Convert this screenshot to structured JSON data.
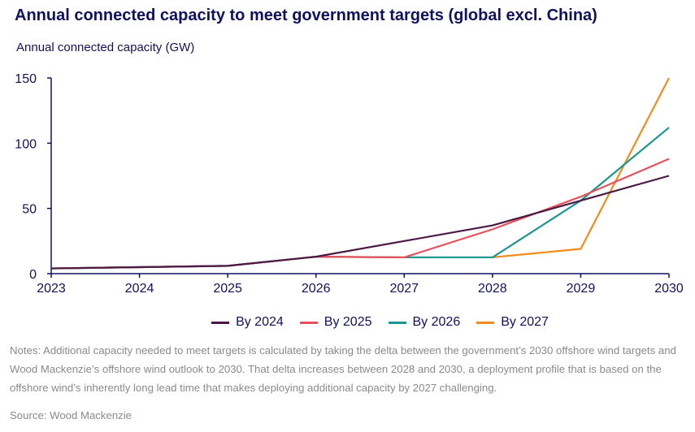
{
  "chart_data": {
    "type": "line",
    "title": "Annual connected capacity to meet government targets (global excl. China)",
    "ylabel": "Annual connected capacity (GW)",
    "xlabel": "",
    "x": [
      2023,
      2024,
      2025,
      2026,
      2027,
      2028,
      2029,
      2030
    ],
    "ylim": [
      0,
      150
    ],
    "yticks": [
      0,
      50,
      100,
      150
    ],
    "grid": false,
    "legend_position": "bottom",
    "series": [
      {
        "name": "By 2024",
        "color": "#4a1a45",
        "values": [
          4,
          5,
          6,
          13,
          25,
          37,
          56,
          75
        ]
      },
      {
        "name": "By 2025",
        "color": "#e8505b",
        "values": [
          4,
          5,
          6,
          13,
          12.5,
          34,
          59,
          88
        ]
      },
      {
        "name": "By 2026",
        "color": "#1b9691",
        "values": [
          4,
          5,
          6,
          13,
          12.5,
          12.5,
          56,
          112
        ]
      },
      {
        "name": "By 2027",
        "color": "#f28c1c",
        "values": [
          4,
          5,
          6,
          13,
          12.5,
          12.5,
          19,
          150
        ]
      }
    ]
  },
  "notes": "Notes: Additional capacity needed to meet targets is calculated by taking the delta between  the government’s  2030 offshore wind targets and Wood Mackenzie’s offshore wind outlook to 2030. That delta increases between 2028 and 2030, a deployment profile that is based on the offshore wind’s inherently long lead time that makes deploying additional capacity by 2027 challenging.",
  "source": "Source: Wood Mackenzie",
  "colors": {
    "title": "#11115e",
    "axis": "#11115e",
    "notes": "#8a8a8a"
  }
}
